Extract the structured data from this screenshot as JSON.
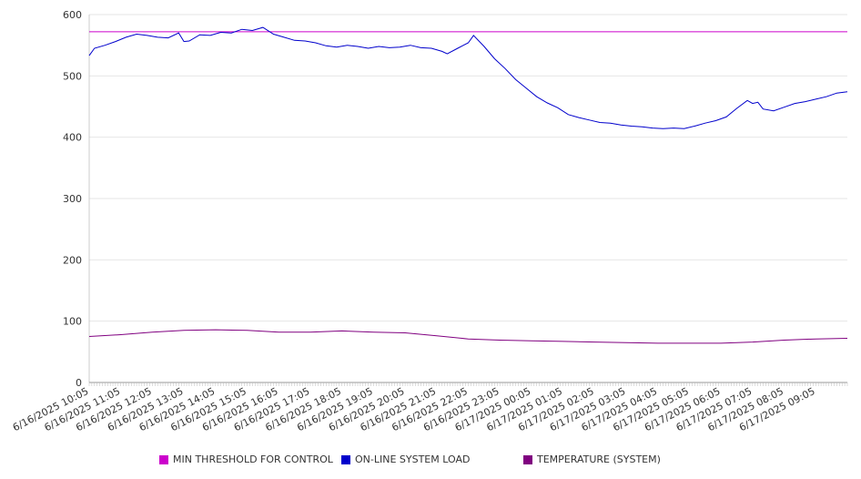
{
  "chart_data": {
    "type": "line",
    "title": "",
    "xlabel": "",
    "ylabel": "",
    "ylim": [
      0,
      600
    ],
    "y_ticks": [
      "0",
      "100",
      "200",
      "300",
      "400",
      "500",
      "600"
    ],
    "grid": "horizontal",
    "legend_position": "bottom",
    "x_tick_labels": [
      "6/16/2025 10:05",
      "6/16/2025 11:05",
      "6/16/2025 12:05",
      "6/16/2025 13:05",
      "6/16/2025 14:05",
      "6/16/2025 15:05",
      "6/16/2025 16:05",
      "6/16/2025 17:05",
      "6/16/2025 18:05",
      "6/16/2025 19:05",
      "6/16/2025 20:05",
      "6/16/2025 21:05",
      "6/16/2025 22:05",
      "6/16/2025 23:05",
      "6/17/2025 00:05",
      "6/17/2025 01:05",
      "6/17/2025 02:05",
      "6/17/2025 03:05",
      "6/17/2025 04:05",
      "6/17/2025 05:05",
      "6/17/2025 06:05",
      "6/17/2025 07:05",
      "6/17/2025 08:05",
      "6/17/2025 09:05"
    ],
    "x_range": [
      "6/16/2025 10:05",
      "6/17/2025 10:05"
    ],
    "series": [
      {
        "name": "MIN THRESHOLD FOR CONTROL",
        "color": "#cc00cc",
        "points": [
          [
            "6/16/2025 10:05",
            572
          ],
          [
            "6/17/2025 10:05",
            572
          ]
        ]
      },
      {
        "name": "ON-LINE SYSTEM LOAD",
        "color": "#0000cc",
        "points": [
          [
            "6/16/2025 10:05",
            533
          ],
          [
            "6/16/2025 10:15",
            545
          ],
          [
            "6/16/2025 10:35",
            550
          ],
          [
            "6/16/2025 10:55",
            556
          ],
          [
            "6/16/2025 11:15",
            563
          ],
          [
            "6/16/2025 11:35",
            568
          ],
          [
            "6/16/2025 11:55",
            566
          ],
          [
            "6/16/2025 12:15",
            563
          ],
          [
            "6/16/2025 12:35",
            562
          ],
          [
            "6/16/2025 12:55",
            570
          ],
          [
            "6/16/2025 13:05",
            556
          ],
          [
            "6/16/2025 13:15",
            557
          ],
          [
            "6/16/2025 13:35",
            567
          ],
          [
            "6/16/2025 13:55",
            566
          ],
          [
            "6/16/2025 14:15",
            571
          ],
          [
            "6/16/2025 14:35",
            570
          ],
          [
            "6/16/2025 14:55",
            576
          ],
          [
            "6/16/2025 15:15",
            574
          ],
          [
            "6/16/2025 15:35",
            579
          ],
          [
            "6/16/2025 15:55",
            568
          ],
          [
            "6/16/2025 16:15",
            563
          ],
          [
            "6/16/2025 16:35",
            558
          ],
          [
            "6/16/2025 16:55",
            557
          ],
          [
            "6/16/2025 17:15",
            554
          ],
          [
            "6/16/2025 17:35",
            549
          ],
          [
            "6/16/2025 17:55",
            547
          ],
          [
            "6/16/2025 18:15",
            550
          ],
          [
            "6/16/2025 18:35",
            548
          ],
          [
            "6/16/2025 18:55",
            545
          ],
          [
            "6/16/2025 19:15",
            548
          ],
          [
            "6/16/2025 19:35",
            546
          ],
          [
            "6/16/2025 19:55",
            547
          ],
          [
            "6/16/2025 20:15",
            550
          ],
          [
            "6/16/2025 20:35",
            546
          ],
          [
            "6/16/2025 20:55",
            545
          ],
          [
            "6/16/2025 21:15",
            540
          ],
          [
            "6/16/2025 21:25",
            536
          ],
          [
            "6/16/2025 21:45",
            545
          ],
          [
            "6/16/2025 22:05",
            554
          ],
          [
            "6/16/2025 22:15",
            566
          ],
          [
            "6/16/2025 22:35",
            548
          ],
          [
            "6/16/2025 22:55",
            528
          ],
          [
            "6/16/2025 23:15",
            512
          ],
          [
            "6/16/2025 23:35",
            494
          ],
          [
            "6/16/2025 23:55",
            480
          ],
          [
            "6/17/2025 00:15",
            466
          ],
          [
            "6/17/2025 00:35",
            456
          ],
          [
            "6/17/2025 00:55",
            448
          ],
          [
            "6/17/2025 01:15",
            437
          ],
          [
            "6/17/2025 01:35",
            432
          ],
          [
            "6/17/2025 01:55",
            428
          ],
          [
            "6/17/2025 02:15",
            424
          ],
          [
            "6/17/2025 02:35",
            423
          ],
          [
            "6/17/2025 02:55",
            420
          ],
          [
            "6/17/2025 03:15",
            418
          ],
          [
            "6/17/2025 03:35",
            417
          ],
          [
            "6/17/2025 03:55",
            415
          ],
          [
            "6/17/2025 04:15",
            414
          ],
          [
            "6/17/2025 04:35",
            415
          ],
          [
            "6/17/2025 04:55",
            414
          ],
          [
            "6/17/2025 05:15",
            418
          ],
          [
            "6/17/2025 05:35",
            423
          ],
          [
            "6/17/2025 05:55",
            427
          ],
          [
            "6/17/2025 06:15",
            433
          ],
          [
            "6/17/2025 06:35",
            447
          ],
          [
            "6/17/2025 06:55",
            460
          ],
          [
            "6/17/2025 07:05",
            455
          ],
          [
            "6/17/2025 07:15",
            457
          ],
          [
            "6/17/2025 07:25",
            446
          ],
          [
            "6/17/2025 07:45",
            443
          ],
          [
            "6/17/2025 08:05",
            449
          ],
          [
            "6/17/2025 08:25",
            455
          ],
          [
            "6/17/2025 08:45",
            458
          ],
          [
            "6/17/2025 09:05",
            462
          ],
          [
            "6/17/2025 09:25",
            466
          ],
          [
            "6/17/2025 09:45",
            472
          ],
          [
            "6/17/2025 10:05",
            474
          ]
        ]
      },
      {
        "name": "TEMPERATURE (SYSTEM)",
        "color": "#800080",
        "points": [
          [
            "6/16/2025 10:05",
            75
          ],
          [
            "6/16/2025 11:05",
            78
          ],
          [
            "6/16/2025 12:05",
            82
          ],
          [
            "6/16/2025 13:05",
            85
          ],
          [
            "6/16/2025 14:05",
            86
          ],
          [
            "6/16/2025 15:05",
            85
          ],
          [
            "6/16/2025 16:05",
            82
          ],
          [
            "6/16/2025 17:05",
            82
          ],
          [
            "6/16/2025 18:05",
            84
          ],
          [
            "6/16/2025 19:05",
            82
          ],
          [
            "6/16/2025 20:05",
            81
          ],
          [
            "6/16/2025 21:05",
            76
          ],
          [
            "6/16/2025 22:05",
            71
          ],
          [
            "6/16/2025 23:05",
            69
          ],
          [
            "6/17/2025 00:05",
            68
          ],
          [
            "6/17/2025 01:05",
            67
          ],
          [
            "6/17/2025 02:05",
            66
          ],
          [
            "6/17/2025 03:05",
            65
          ],
          [
            "6/17/2025 04:05",
            64
          ],
          [
            "6/17/2025 05:05",
            64
          ],
          [
            "6/17/2025 06:05",
            64
          ],
          [
            "6/17/2025 07:05",
            66
          ],
          [
            "6/17/2025 08:05",
            69
          ],
          [
            "6/17/2025 09:05",
            71
          ],
          [
            "6/17/2025 10:05",
            72
          ]
        ]
      }
    ]
  }
}
